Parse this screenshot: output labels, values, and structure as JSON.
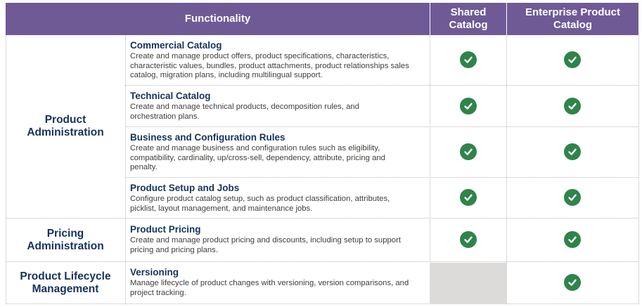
{
  "header": {
    "functionality": "Functionality",
    "shared_catalog": "Shared Catalog",
    "enterprise_catalog": "Enterprise Product Catalog"
  },
  "groups": [
    {
      "label": "Product Administration"
    },
    {
      "label": "Pricing Administration"
    },
    {
      "label": "Product Lifecycle Management"
    }
  ],
  "rows": [
    {
      "title": "Commercial Catalog",
      "description": "Create and manage product offers, product specifications, characteristics, characteristic values, bundles, product attachments, product relationships sales catalog, migration plans, including multilingual support.",
      "shared": true,
      "enterprise": true
    },
    {
      "title": "Technical Catalog",
      "description": "Create and manage technical products, decomposition rules, and orchestration plans.",
      "shared": true,
      "enterprise": true
    },
    {
      "title": "Business and Configuration Rules",
      "description": "Create and manage business and configuration rules such as eligibility, compatibility, cardinality, up/cross-sell, dependency, attribute, pricing and penalty.",
      "shared": true,
      "enterprise": true
    },
    {
      "title": "Product Setup and Jobs",
      "description": "Configure product catalog setup, such as product classification, attributes, picklist, layout management, and maintenance jobs.",
      "shared": true,
      "enterprise": true
    },
    {
      "title": "Product Pricing",
      "description": "Create and manage product pricing and discounts, including setup to support pricing and pricing plans.",
      "shared": true,
      "enterprise": true
    },
    {
      "title": "Versioning",
      "description": "Manage lifecycle of product changes with versioning, version comparisons, and project tracking.",
      "shared": false,
      "enterprise": true
    }
  ],
  "colors": {
    "header_bg": "#6f5a96",
    "check_green": "#2e844a",
    "title_navy": "#16325c",
    "not_available_gray": "#dddbda"
  },
  "icons": {
    "available": "check-circle-icon"
  }
}
